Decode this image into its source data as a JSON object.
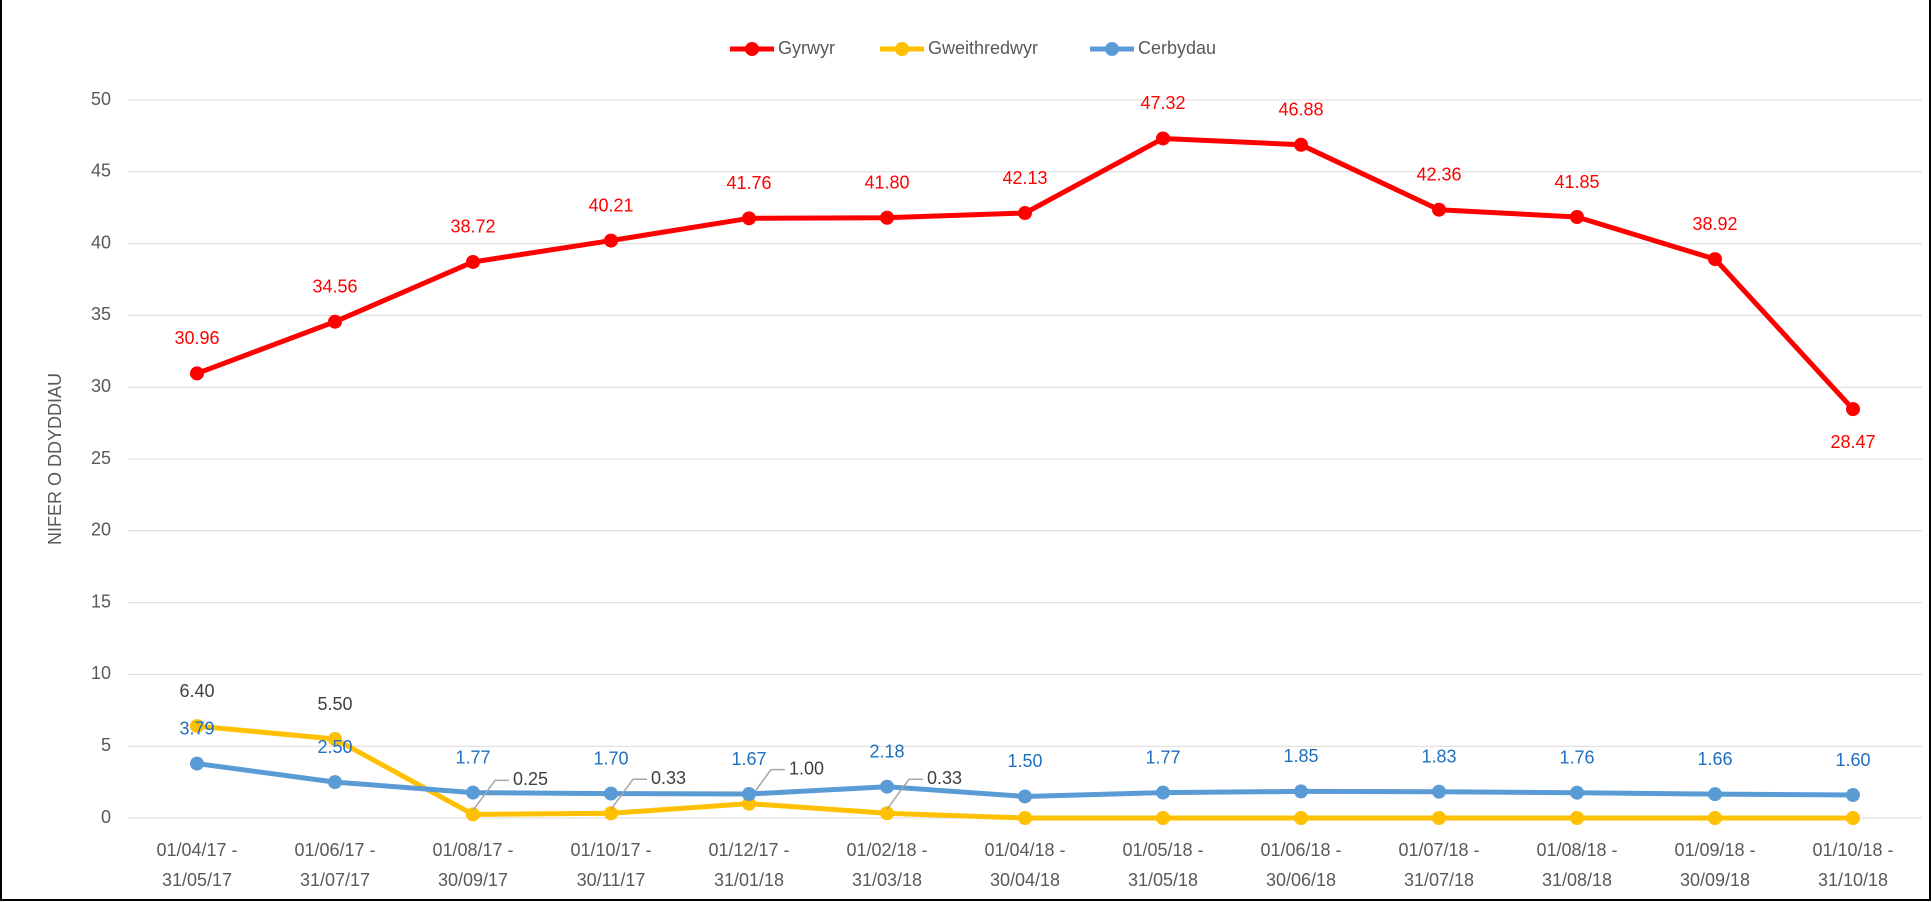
{
  "chart_data": {
    "type": "line",
    "y_axis_label": "NIFER O DDYDDIAU",
    "categories": [
      [
        "01/04/17 -",
        "31/05/17"
      ],
      [
        "01/06/17 -",
        "31/07/17"
      ],
      [
        "01/08/17 -",
        "30/09/17"
      ],
      [
        "01/10/17 -",
        "30/11/17"
      ],
      [
        "01/12/17 -",
        "31/01/18"
      ],
      [
        "01/02/18 -",
        "31/03/18"
      ],
      [
        "01/04/18 -",
        "30/04/18"
      ],
      [
        "01/05/18 -",
        "31/05/18"
      ],
      [
        "01/06/18 -",
        "30/06/18"
      ],
      [
        "01/07/18 -",
        "31/07/18"
      ],
      [
        "01/08/18 -",
        "31/08/18"
      ],
      [
        "01/09/18 -",
        "30/09/18"
      ],
      [
        "01/10/18 -",
        "31/10/18"
      ]
    ],
    "series": [
      {
        "name": "Gyrwyr",
        "color": "#ff0000",
        "label_color": "#ff0000",
        "values": [
          30.96,
          34.56,
          38.72,
          40.21,
          41.76,
          41.8,
          42.13,
          47.32,
          46.88,
          42.36,
          41.85,
          38.92,
          28.47
        ],
        "value_labels": [
          "30.96",
          "34.56",
          "38.72",
          "40.21",
          "41.76",
          "41.80",
          "42.13",
          "47.32",
          "46.88",
          "42.36",
          "41.85",
          "38.92",
          "28.47"
        ]
      },
      {
        "name": "Gweithredwyr",
        "color": "#ffc000",
        "label_color": "#404040",
        "values": [
          6.4,
          5.5,
          0.25,
          0.33,
          1.0,
          0.33,
          0,
          0,
          0,
          0,
          0,
          0,
          0
        ],
        "value_labels": [
          "6.40",
          "5.50",
          "0.25",
          "0.33",
          "1.00",
          "0.33",
          null,
          null,
          null,
          null,
          null,
          null,
          null
        ]
      },
      {
        "name": "Cerbydau",
        "color": "#5b9bd5",
        "label_color": "#1f6fbf",
        "values": [
          3.79,
          2.5,
          1.77,
          1.7,
          1.67,
          2.18,
          1.5,
          1.77,
          1.85,
          1.83,
          1.76,
          1.66,
          1.6
        ],
        "value_labels": [
          "3.79",
          "2.50",
          "1.77",
          "1.70",
          "1.67",
          "2.18",
          "1.50",
          "1.77",
          "1.85",
          "1.83",
          "1.76",
          "1.66",
          "1.60"
        ]
      }
    ],
    "ylim": [
      0,
      50
    ],
    "yticks": [
      0,
      5,
      10,
      15,
      20,
      25,
      30,
      35,
      40,
      45,
      50
    ],
    "grid": true,
    "legend": "top"
  }
}
